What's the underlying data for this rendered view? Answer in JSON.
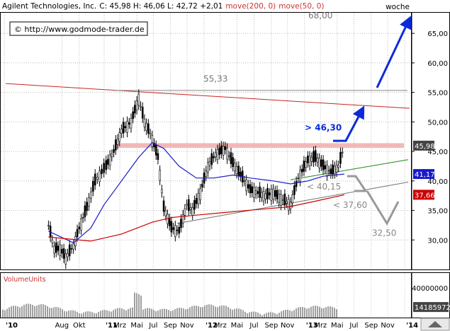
{
  "header": {
    "title": "Agilent Technologies, Inc.",
    "quote": "C: 45,98 H: 46,06 L: 42,72 +2,01",
    "ma200_label": "move(200, 0)",
    "ma50_label": "move(50, 0)",
    "period": "woche"
  },
  "copyright": "© http://www.godmode-trader.de",
  "volume": {
    "label": "VolumeUnits",
    "tick_labels": [
      "40000000",
      "14185972"
    ],
    "current_value": "14185972"
  },
  "colors": {
    "price": "#000000",
    "ma50": "#1a1acc",
    "ma200": "#cc0000",
    "resistance_line": "#cc2222",
    "support_band": "#f2b8b8",
    "green_trend": "#1a8a1a",
    "gray_trend": "#777777",
    "arrow_blue": "#0b2bd9",
    "scenario_gray": "#999999"
  },
  "chart_data": {
    "type": "candlestick",
    "title": "Agilent Technologies, Inc.",
    "interval": "weekly",
    "x_tick_labels": [
      "'10",
      "Aug",
      "Okt",
      "'11",
      "Mrz",
      "Mai",
      "Jul",
      "Sep",
      "Nov",
      "'12",
      "Mrz",
      "Mai",
      "Jul",
      "Sep",
      "Nov",
      "'13",
      "Mrz",
      "Mai",
      "Jul",
      "Sep",
      "Nov",
      "'14"
    ],
    "y_ticks": [
      "65,00",
      "60,00",
      "55,00",
      "50,00",
      "45,00",
      "40,00",
      "35,00",
      "30,00"
    ],
    "ylim": [
      25,
      68.5
    ],
    "series": [
      {
        "name": "Agilent Technologies, Inc.",
        "type": "close",
        "points": [
          [
            "2010-06-14",
            32.5
          ],
          [
            "2010-07-05",
            28.5
          ],
          [
            "2010-07-26",
            28.5
          ],
          [
            "2010-08-16",
            27.0
          ],
          [
            "2010-09-13",
            29.0
          ],
          [
            "2010-10-04",
            32.0
          ],
          [
            "2010-11-01",
            35.5
          ],
          [
            "2010-12-01",
            40.0
          ],
          [
            "2011-01-10",
            42.5
          ],
          [
            "2011-02-07",
            45.0
          ],
          [
            "2011-03-07",
            48.5
          ],
          [
            "2011-04-11",
            50.0
          ],
          [
            "2011-05-09",
            54.0
          ],
          [
            "2011-05-30",
            50.0
          ],
          [
            "2011-06-20",
            48.0
          ],
          [
            "2011-07-18",
            44.0
          ],
          [
            "2011-08-08",
            35.5
          ],
          [
            "2011-09-05",
            32.0
          ],
          [
            "2011-10-03",
            31.5
          ],
          [
            "2011-10-31",
            36.0
          ],
          [
            "2011-11-21",
            35.0
          ],
          [
            "2011-12-19",
            38.0
          ],
          [
            "2012-01-16",
            42.5
          ],
          [
            "2012-02-13",
            44.5
          ],
          [
            "2012-03-19",
            45.5
          ],
          [
            "2012-04-16",
            43.0
          ],
          [
            "2012-05-21",
            40.5
          ],
          [
            "2012-06-18",
            38.5
          ],
          [
            "2012-07-16",
            38.0
          ],
          [
            "2012-08-13",
            37.5
          ],
          [
            "2012-09-10",
            38.0
          ],
          [
            "2012-10-08",
            37.0
          ],
          [
            "2012-11-12",
            36.0
          ],
          [
            "2012-12-10",
            40.5
          ],
          [
            "2013-01-14",
            43.5
          ],
          [
            "2013-02-11",
            44.0
          ],
          [
            "2013-03-11",
            42.5
          ],
          [
            "2013-04-08",
            41.5
          ],
          [
            "2013-05-06",
            42.5
          ],
          [
            "2013-05-27",
            45.98
          ]
        ]
      },
      {
        "name": "move(50, 0)",
        "type": "line",
        "points": [
          [
            "2010-06-14",
            31.5
          ],
          [
            "2010-09-13",
            29.5
          ],
          [
            "2010-11-15",
            32.0
          ],
          [
            "2011-01-03",
            36.0
          ],
          [
            "2011-03-07",
            40.0
          ],
          [
            "2011-05-09",
            44.0
          ],
          [
            "2011-06-27",
            46.5
          ],
          [
            "2011-08-08",
            45.5
          ],
          [
            "2011-10-03",
            42.5
          ],
          [
            "2011-12-05",
            40.5
          ],
          [
            "2012-02-06",
            40.5
          ],
          [
            "2012-04-16",
            41.0
          ],
          [
            "2012-06-18",
            40.5
          ],
          [
            "2012-09-10",
            40.0
          ],
          [
            "2012-11-12",
            39.5
          ],
          [
            "2013-01-14",
            40.0
          ],
          [
            "2013-03-11",
            40.8
          ],
          [
            "2013-05-27",
            41.17
          ]
        ]
      },
      {
        "name": "move(200, 0)",
        "type": "line",
        "points": [
          [
            "2010-06-14",
            30.5
          ],
          [
            "2010-11-15",
            29.8
          ],
          [
            "2011-03-07",
            31.0
          ],
          [
            "2011-06-27",
            33.0
          ],
          [
            "2011-09-05",
            33.8
          ],
          [
            "2011-12-05",
            34.2
          ],
          [
            "2012-03-05",
            34.6
          ],
          [
            "2012-07-02",
            35.1
          ],
          [
            "2012-11-05",
            35.6
          ],
          [
            "2013-02-04",
            36.5
          ],
          [
            "2013-05-27",
            37.66
          ]
        ]
      }
    ],
    "last_value_labels": [
      {
        "series": "close",
        "value": "45,98"
      },
      {
        "series": "move(50, 0)",
        "value": "41,17"
      },
      {
        "series": "move(200, 0)",
        "value": "37,66"
      }
    ],
    "annotations": [
      {
        "text": "68,00",
        "kind": "target"
      },
      {
        "text": "55,33",
        "kind": "resistance"
      },
      {
        "text": "> 46,30",
        "kind": "breakout"
      },
      {
        "text": "< 40,15",
        "kind": "breakdown"
      },
      {
        "text": "< 37,60",
        "kind": "breakdown"
      },
      {
        "text": "32,50",
        "kind": "target"
      }
    ]
  }
}
